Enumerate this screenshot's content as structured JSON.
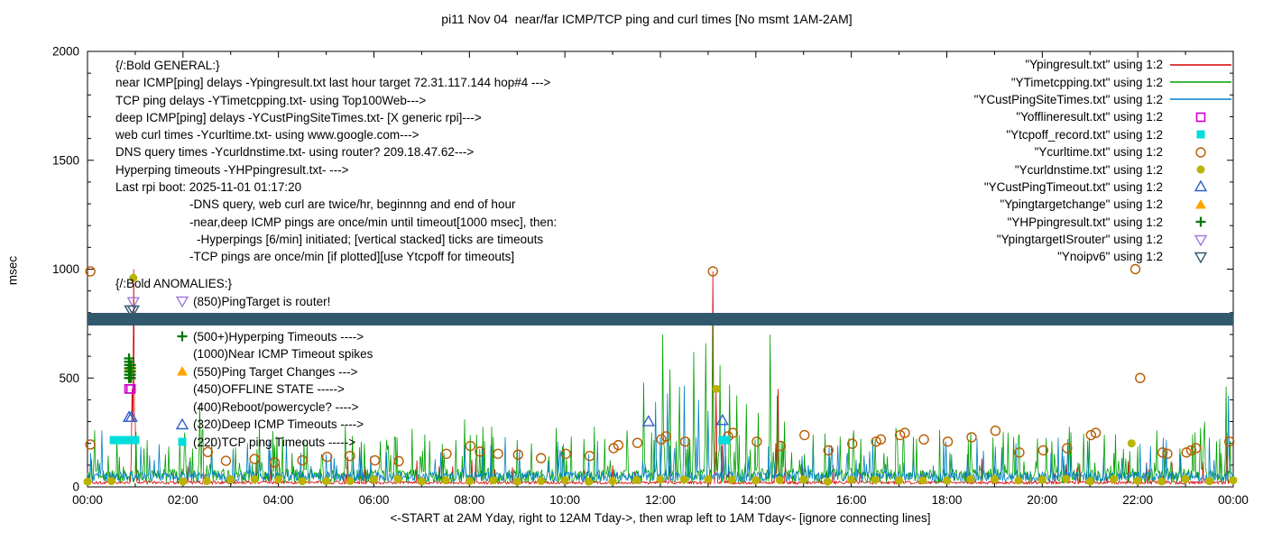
{
  "chart_data": {
    "type": "line",
    "title": "pi11 Nov 04  near/far ICMP/TCP ping and curl times [No msmt 1AM-2AM]",
    "ylabel": "msec",
    "xlabel": "<-START at 2AM Yday, right to 12AM Tday->, then wrap left to 1AM Tday<- [ignore connecting lines]",
    "ylim": [
      0,
      2000
    ],
    "xlim_hours": [
      0,
      24
    ],
    "yticks": [
      0,
      500,
      1000,
      1500,
      2000
    ],
    "xtick_hours": [
      0,
      2,
      4,
      6,
      8,
      10,
      12,
      14,
      16,
      18,
      20,
      22,
      24
    ],
    "xtick_labels": [
      "00:00",
      "02:00",
      "04:00",
      "06:00",
      "08:00",
      "10:00",
      "12:00",
      "14:00",
      "16:00",
      "18:00",
      "20:00",
      "22:00",
      "00:00"
    ],
    "grid": false,
    "legend_position": "top-right",
    "noise_seed": 1337,
    "band": {
      "series": "Ynoipv6",
      "value_msec": 770,
      "thickness_msec": 58,
      "color": "#31596E"
    },
    "line_series": [
      {
        "name": "Ypingresult near ICMP ping",
        "color": "#D40000",
        "baseline": {
          "min": 13,
          "max": 27,
          "spike_chance": 0.025,
          "spike_min": 40,
          "spike_max": 140
        },
        "spikes": [
          [
            0.93,
            450
          ],
          [
            0.96,
            1000
          ],
          [
            1.0,
            300
          ],
          [
            13.1,
            990
          ],
          [
            13.16,
            450
          ],
          [
            13.3,
            200
          ],
          [
            14.42,
            200
          ],
          [
            14.46,
            450
          ],
          [
            23.87,
            250
          ]
        ]
      },
      {
        "name": "YTimetcpping TCP ping",
        "color": "#00A000",
        "baseline": {
          "min": 18,
          "max": 85,
          "spike_chance": 0.12,
          "spike_min": 90,
          "spike_max": 280
        },
        "spikes": [
          [
            2.35,
            385
          ],
          [
            3.1,
            180
          ],
          [
            4.6,
            200
          ],
          [
            5.4,
            285
          ],
          [
            6.3,
            190
          ],
          [
            7.9,
            310
          ],
          [
            8.15,
            240
          ],
          [
            9.3,
            200
          ],
          [
            10.4,
            220
          ],
          [
            11.3,
            260
          ],
          [
            11.65,
            480
          ],
          [
            12.05,
            700
          ],
          [
            12.2,
            540
          ],
          [
            12.4,
            460
          ],
          [
            12.7,
            620
          ],
          [
            12.95,
            660
          ],
          [
            13.1,
            740
          ],
          [
            13.25,
            560
          ],
          [
            13.45,
            470
          ],
          [
            13.6,
            420
          ],
          [
            13.8,
            380
          ],
          [
            14.05,
            340
          ],
          [
            14.3,
            700
          ],
          [
            14.45,
            420
          ],
          [
            14.6,
            300
          ],
          [
            15.2,
            240
          ],
          [
            16.05,
            260
          ],
          [
            16.5,
            220
          ],
          [
            17.3,
            230
          ],
          [
            18.5,
            250
          ],
          [
            19.4,
            230
          ],
          [
            20.2,
            210
          ],
          [
            21.3,
            240
          ],
          [
            22.4,
            260
          ],
          [
            23.4,
            300
          ],
          [
            23.85,
            460
          ]
        ]
      },
      {
        "name": "YCustPingSiteTimes deep ICMP ping",
        "color": "#0080C8",
        "baseline": {
          "min": 25,
          "max": 70,
          "spike_chance": 0.07,
          "spike_min": 80,
          "spike_max": 230
        },
        "spikes": [
          [
            0.3,
            260
          ],
          [
            2.6,
            180
          ],
          [
            5.0,
            150
          ],
          [
            7.4,
            160
          ],
          [
            9.9,
            170
          ],
          [
            11.9,
            390
          ],
          [
            12.15,
            430
          ],
          [
            12.5,
            465
          ],
          [
            12.8,
            400
          ],
          [
            13.0,
            350
          ],
          [
            13.35,
            300
          ],
          [
            15.6,
            160
          ],
          [
            18.1,
            150
          ],
          [
            20.6,
            140
          ],
          [
            22.9,
            150
          ],
          [
            23.9,
            420
          ]
        ]
      }
    ],
    "point_series": [
      {
        "name": "Ycurltime web curl",
        "marker": "open-circle",
        "color": "#B85C00",
        "points": [
          [
            0.06,
            990
          ],
          [
            0.06,
            195
          ],
          [
            2.52,
            160
          ],
          [
            2.9,
            120
          ],
          [
            3.5,
            128
          ],
          [
            3.92,
            112
          ],
          [
            4.5,
            122
          ],
          [
            5.02,
            138
          ],
          [
            5.5,
            142
          ],
          [
            6.02,
            122
          ],
          [
            6.52,
            118
          ],
          [
            7.52,
            152
          ],
          [
            8.02,
            188
          ],
          [
            8.22,
            162
          ],
          [
            8.6,
            152
          ],
          [
            9.02,
            148
          ],
          [
            9.5,
            132
          ],
          [
            10.02,
            152
          ],
          [
            10.52,
            142
          ],
          [
            11.02,
            178
          ],
          [
            11.12,
            192
          ],
          [
            11.52,
            202
          ],
          [
            12.02,
            218
          ],
          [
            12.12,
            232
          ],
          [
            12.52,
            208
          ],
          [
            13.1,
            990
          ],
          [
            13.42,
            232
          ],
          [
            13.52,
            248
          ],
          [
            14.02,
            208
          ],
          [
            14.52,
            188
          ],
          [
            15.02,
            238
          ],
          [
            15.52,
            168
          ],
          [
            16.02,
            198
          ],
          [
            16.52,
            208
          ],
          [
            16.62,
            218
          ],
          [
            17.02,
            238
          ],
          [
            17.12,
            248
          ],
          [
            17.52,
            218
          ],
          [
            18.02,
            208
          ],
          [
            18.52,
            228
          ],
          [
            19.02,
            258
          ],
          [
            19.52,
            158
          ],
          [
            20.02,
            168
          ],
          [
            20.52,
            178
          ],
          [
            21.02,
            238
          ],
          [
            21.12,
            248
          ],
          [
            21.95,
            1000
          ],
          [
            22.05,
            500
          ],
          [
            22.52,
            158
          ],
          [
            22.62,
            152
          ],
          [
            23.02,
            158
          ],
          [
            23.12,
            168
          ],
          [
            23.22,
            178
          ],
          [
            23.92,
            208
          ]
        ]
      },
      {
        "name": "Ycurldnstime DNS query",
        "marker": "filled-circle",
        "color": "#B8B400",
        "points": [
          [
            0.96,
            960
          ],
          [
            13.17,
            450
          ],
          [
            21.87,
            200
          ]
        ],
        "regular": {
          "start": 0,
          "end": 24,
          "interval": 0.5,
          "base": 24,
          "jitter": 14,
          "skip": [
            1.0,
            1.5
          ]
        }
      },
      {
        "name": "Ytcpoff_record TCP ping timeouts",
        "marker": "filled-square",
        "color": "#00DDDD",
        "points": [
          [
            0.55,
            215
          ],
          [
            0.6,
            215
          ],
          [
            0.65,
            215
          ],
          [
            0.7,
            215
          ],
          [
            0.75,
            215
          ],
          [
            0.8,
            215
          ],
          [
            0.85,
            215
          ],
          [
            0.9,
            215
          ],
          [
            0.95,
            215
          ],
          [
            1.0,
            215
          ],
          [
            13.3,
            215
          ],
          [
            13.38,
            215
          ]
        ]
      },
      {
        "name": "Yofflineresult offline state",
        "marker": "open-square",
        "color": "#CC00CC",
        "points": [
          [
            0.87,
            450
          ],
          [
            0.91,
            450
          ]
        ]
      },
      {
        "name": "Ypingtargetchange",
        "marker": "filled-triangle-up",
        "color": "#FFA500",
        "points": [
          [
            0.89,
            552
          ]
        ]
      },
      {
        "name": "YCustPingTimeout deep ICMP timeouts",
        "marker": "open-triangle-up",
        "color": "#3060C8",
        "points": [
          [
            0.87,
            320
          ],
          [
            0.92,
            320
          ],
          [
            11.75,
            300
          ],
          [
            13.3,
            305
          ]
        ]
      },
      {
        "name": "YHPpingresult hyperping timeouts",
        "marker": "plus",
        "color": "#007700",
        "points": [
          [
            0.87,
            500
          ],
          [
            0.87,
            515
          ],
          [
            0.87,
            530
          ],
          [
            0.87,
            545
          ],
          [
            0.87,
            560
          ],
          [
            0.87,
            575
          ],
          [
            0.87,
            590
          ],
          [
            0.91,
            500
          ],
          [
            0.91,
            515
          ],
          [
            0.91,
            530
          ],
          [
            0.91,
            545
          ],
          [
            0.91,
            560
          ]
        ]
      },
      {
        "name": "YpingtargetISrouter",
        "marker": "open-triangle-down",
        "color": "#A379E0",
        "points": [
          [
            0.96,
            850
          ]
        ]
      },
      {
        "name": "Ynoipv6",
        "marker": "open-triangle-down",
        "color": "#31596E",
        "points": [
          [
            0.9,
            812
          ],
          [
            0.96,
            812
          ]
        ]
      }
    ]
  },
  "annotations": {
    "general": {
      "lines": [
        {
          "text": "{/:Bold GENERAL:}",
          "indent": 0
        },
        {
          "text": "near ICMP[ping] delays -Ypingresult.txt last hour target 72.31.117.144 hop#4 --->",
          "indent": 0
        },
        {
          "text": "TCP ping delays -YTimetcpping.txt- using Top100Web--->",
          "indent": 0
        },
        {
          "text": "deep ICMP[ping] delays -YCustPingSiteTimes.txt- [X generic rpi]--->",
          "indent": 0
        },
        {
          "text": "web curl times -Ycurltime.txt- using www.google.com--->",
          "indent": 0
        },
        {
          "text": "DNS query times -Ycurldnstime.txt- using router? 209.18.47.62--->",
          "indent": 0
        },
        {
          "text": "Hyperping timeouts -YHPpingresult.txt- --->",
          "indent": 0
        },
        {
          "text": "Last rpi boot: 2025-11-01 01:17:20",
          "indent": 0
        },
        {
          "text": "-DNS query, web curl are twice/hr, beginnng and end of hour",
          "indent": 1
        },
        {
          "text": "-near,deep ICMP pings are once/min until timeout[1000 msec], then:",
          "indent": 1
        },
        {
          "text": "-Hyperpings [6/min] initiated; [vertical stacked] ticks are timeouts",
          "indent": 2
        },
        {
          "text": "-TCP pings are once/min [if plotted][use Ytcpoff for timeouts]",
          "indent": 1
        }
      ]
    },
    "anomalies": {
      "header": "{/:Bold ANOMALIES:}",
      "items": [
        {
          "marker": "open-triangle-down",
          "color": "#A379E0",
          "text": "(850)PingTarget is router!"
        },
        {
          "marker": "open-triangle-down",
          "color": "#31596E",
          "text": ""
        },
        {
          "marker": "plus",
          "color": "#007700",
          "text": "(500+)Hyperping Timeouts ---->"
        },
        {
          "marker": null,
          "color": null,
          "text": "(1000)Near ICMP Timeout spikes"
        },
        {
          "marker": "filled-triangle-up",
          "color": "#FFA500",
          "text": "(550)Ping Target Changes --->"
        },
        {
          "marker": null,
          "color": null,
          "text": "(450)OFFLINE STATE ----->"
        },
        {
          "marker": null,
          "color": null,
          "text": "(400)Reboot/powercycle? ---->"
        },
        {
          "marker": "open-triangle-up",
          "color": "#3060C8",
          "text": "(320)Deep ICMP Timeouts ---->"
        },
        {
          "marker": "filled-square",
          "color": "#00DDDD",
          "text": "(220)TCP ping Timeouts ----->"
        }
      ]
    }
  },
  "legend": {
    "entries": [
      {
        "label": "\"Ypingresult.txt\" using 1:2",
        "swatch": "line",
        "color": "#D40000"
      },
      {
        "label": "\"YTimetcpping.txt\" using 1:2",
        "swatch": "line",
        "color": "#00A000"
      },
      {
        "label": "\"YCustPingSiteTimes.txt\" using 1:2",
        "swatch": "line",
        "color": "#0080C8"
      },
      {
        "label": "\"Yofflineresult.txt\" using 1:2",
        "swatch": "open-square",
        "color": "#CC00CC"
      },
      {
        "label": "\"Ytcpoff_record.txt\" using 1:2",
        "swatch": "filled-square",
        "color": "#00DDDD"
      },
      {
        "label": "\"Ycurltime.txt\" using 1:2",
        "swatch": "open-circle",
        "color": "#B85C00"
      },
      {
        "label": "\"Ycurldnstime.txt\" using 1:2",
        "swatch": "filled-circle",
        "color": "#B8B400"
      },
      {
        "label": "\"YCustPingTimeout.txt\" using 1:2",
        "swatch": "open-triangle-up",
        "color": "#3060C8"
      },
      {
        "label": "\"Ypingtargetchange\" using 1:2",
        "swatch": "filled-triangle-up",
        "color": "#FFA500"
      },
      {
        "label": "\"YHPpingresult.txt\" using 1:2",
        "swatch": "plus",
        "color": "#007700"
      },
      {
        "label": "\"YpingtargetISrouter\" using 1:2",
        "swatch": "open-triangle-down",
        "color": "#A379E0"
      },
      {
        "label": "\"Ynoipv6\" using 1:2",
        "swatch": "open-triangle-down",
        "color": "#31596E"
      }
    ]
  }
}
